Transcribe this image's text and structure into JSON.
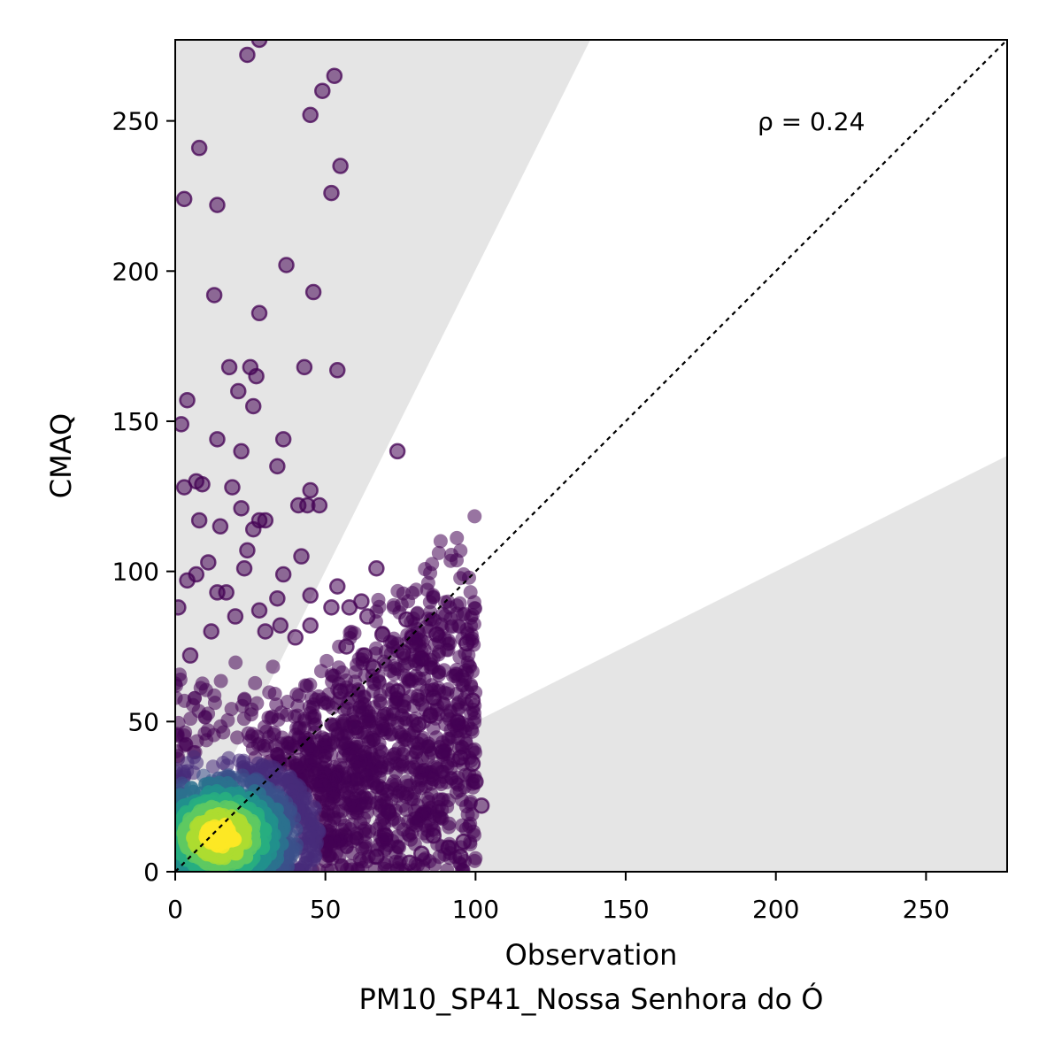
{
  "chart_data": {
    "type": "scatter",
    "title": "",
    "xlabel": "Observation",
    "ylabel": "CMAQ",
    "subtitle": "PM10_SP41_Nossa Senhora do Ó",
    "annotation": "ρ = 0.24",
    "xlim": [
      0,
      277
    ],
    "ylim": [
      0,
      277
    ],
    "xticks": [
      "0",
      "50",
      "100",
      "150",
      "200",
      "250"
    ],
    "yticks": [
      "0",
      "50",
      "100",
      "150",
      "200",
      "250"
    ],
    "grid": false,
    "reference_line": "1:1 dashed",
    "shaded_regions": "outside factor-of-2 band",
    "colormap": "viridis (point density)",
    "colors": {
      "shade": "#e5e5e5",
      "low_density": "#440154",
      "mid_density": "#21918c",
      "high_density": "#fde725",
      "line": "#000000"
    },
    "outlier_points": [
      [
        24,
        272
      ],
      [
        28,
        277
      ],
      [
        53,
        265
      ],
      [
        49,
        260
      ],
      [
        45,
        252
      ],
      [
        8,
        241
      ],
      [
        55,
        235
      ],
      [
        52,
        226
      ],
      [
        3,
        224
      ],
      [
        14,
        222
      ],
      [
        37,
        202
      ],
      [
        13,
        192
      ],
      [
        46,
        193
      ],
      [
        28,
        186
      ],
      [
        18,
        168
      ],
      [
        25,
        168
      ],
      [
        43,
        168
      ],
      [
        54,
        167
      ],
      [
        27,
        165
      ],
      [
        21,
        160
      ],
      [
        26,
        155
      ],
      [
        4,
        157
      ],
      [
        2,
        149
      ],
      [
        14,
        144
      ],
      [
        36,
        144
      ],
      [
        22,
        140
      ],
      [
        74,
        140
      ],
      [
        34,
        135
      ],
      [
        7,
        130
      ],
      [
        9,
        129
      ],
      [
        3,
        128
      ],
      [
        19,
        128
      ],
      [
        45,
        127
      ],
      [
        41,
        122
      ],
      [
        44,
        122
      ],
      [
        48,
        122
      ],
      [
        22,
        121
      ],
      [
        8,
        117
      ],
      [
        28,
        117
      ],
      [
        30,
        117
      ],
      [
        26,
        114
      ],
      [
        15,
        115
      ],
      [
        24,
        107
      ],
      [
        36,
        99
      ],
      [
        42,
        105
      ],
      [
        11,
        103
      ],
      [
        23,
        101
      ],
      [
        67,
        101
      ],
      [
        7,
        99
      ],
      [
        4,
        97
      ],
      [
        14,
        93
      ],
      [
        1,
        88
      ],
      [
        17,
        93
      ],
      [
        28,
        87
      ],
      [
        34,
        91
      ],
      [
        45,
        92
      ],
      [
        54,
        95
      ],
      [
        62,
        90
      ],
      [
        52,
        88
      ],
      [
        58,
        88
      ],
      [
        45,
        82
      ],
      [
        35,
        82
      ],
      [
        64,
        85
      ],
      [
        69,
        79
      ],
      [
        77,
        84
      ],
      [
        79,
        78
      ],
      [
        87,
        79
      ],
      [
        97,
        76
      ],
      [
        82,
        71
      ],
      [
        76,
        73
      ],
      [
        74,
        60
      ],
      [
        99,
        57
      ],
      [
        94,
        50
      ],
      [
        86,
        58
      ],
      [
        85,
        52
      ],
      [
        81,
        49
      ],
      [
        89,
        40
      ],
      [
        95,
        38
      ],
      [
        99,
        36
      ],
      [
        100,
        30
      ],
      [
        102,
        22
      ],
      [
        96,
        10
      ],
      [
        95,
        5
      ],
      [
        91,
        8
      ],
      [
        86,
        12
      ],
      [
        82,
        6
      ],
      [
        78,
        3
      ],
      [
        67,
        5
      ],
      [
        70,
        12
      ],
      [
        71,
        20
      ],
      [
        60,
        48
      ],
      [
        55,
        60
      ],
      [
        66,
        68
      ],
      [
        63,
        72
      ],
      [
        57,
        75
      ],
      [
        40,
        78
      ],
      [
        30,
        80
      ],
      [
        20,
        85
      ],
      [
        12,
        80
      ],
      [
        5,
        72
      ]
    ]
  }
}
